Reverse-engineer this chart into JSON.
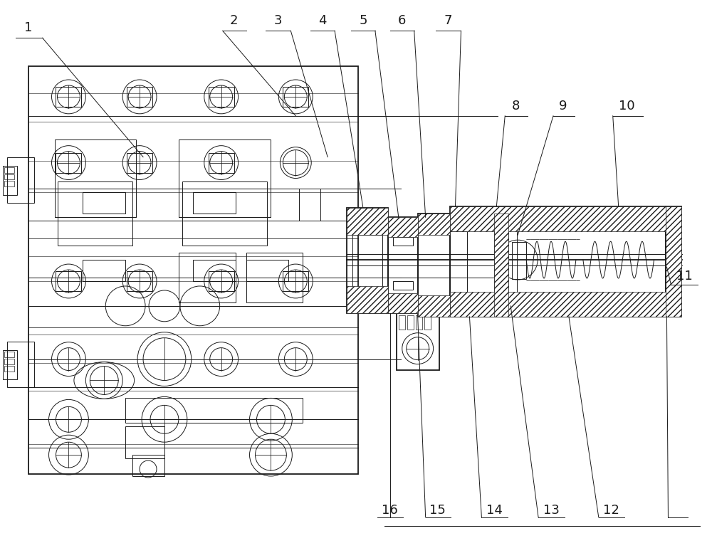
{
  "background_color": "#ffffff",
  "line_color": "#1a1a1a",
  "figure_width": 10.0,
  "figure_height": 7.84,
  "dpi": 100,
  "label_fontsize": 13,
  "lw_main": 1.3,
  "lw_thin": 0.7,
  "lw_hatch": 0.5
}
